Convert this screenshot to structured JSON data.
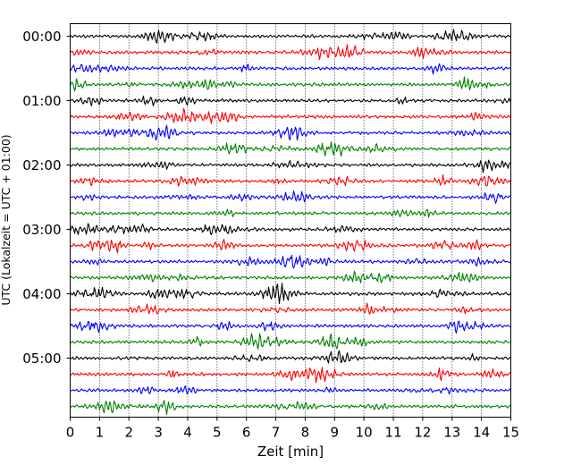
{
  "chart_data": {
    "type": "line",
    "xlabel": "Zeit  [min]",
    "ylabel": "UTC (Lokalzeit = UTC + 01:00)",
    "xlim": [
      0,
      15
    ],
    "x_ticks": [
      "0",
      "1",
      "2",
      "3",
      "4",
      "5",
      "6",
      "7",
      "8",
      "9",
      "10",
      "11",
      "12",
      "13",
      "14",
      "15"
    ],
    "y_tick_labels": [
      "00:00",
      "01:00",
      "02:00",
      "03:00",
      "04:00",
      "05:00"
    ],
    "trace_interval_min": 15,
    "trace_count": 24,
    "trace_colors": [
      "#000000",
      "#ff0000",
      "#0000ff",
      "#008000"
    ],
    "grid": "vertical dotted at each minute"
  }
}
